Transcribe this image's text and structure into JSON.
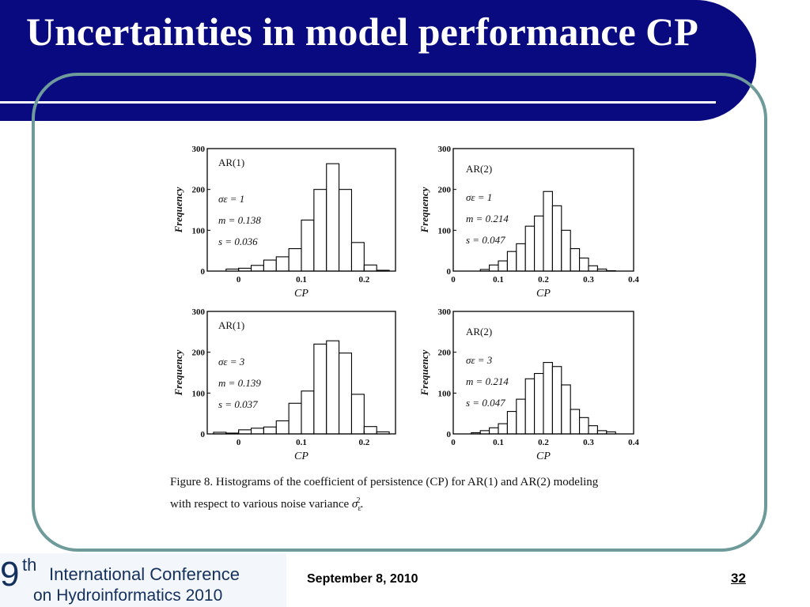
{
  "slide": {
    "title": "Uncertainties in model performance CP",
    "date": "September 8, 2010",
    "page_number": "32",
    "logo": {
      "line1_number": "9",
      "line1_suffix": "th",
      "line1_text": "International Conference",
      "line2_text": "on Hydroinformatics 2010"
    },
    "colors": {
      "title_bar": "#0a0a80",
      "frame": "#6e9a9a",
      "logo_text": "#14305c"
    }
  },
  "figure": {
    "caption_line1": "Figure 8. Histograms of the coefficient of persistence (CP) for AR(1) and AR(2) modeling",
    "caption_line2_prefix": "with respect to various noise variance ",
    "caption_line2_symbol": "σ",
    "caption_line2_suffix": "."
  },
  "chart_data": [
    {
      "type": "bar",
      "model": "AR(1)",
      "stats": [
        "σε = 1",
        "m = 0.138",
        "s = 0.036"
      ],
      "xlabel": "CP",
      "ylabel": "Frequency",
      "xlim": [
        -0.05,
        0.25
      ],
      "ylim": [
        0,
        300
      ],
      "xticks": [
        "0",
        "0.1",
        "0.2"
      ],
      "xtick_values": [
        0,
        0.1,
        0.2
      ],
      "yticks": [
        "0",
        "100",
        "200",
        "300"
      ],
      "ytick_values": [
        0,
        100,
        200,
        300
      ],
      "bin_start": -0.02,
      "bin_width": 0.02,
      "values": [
        5,
        7,
        14,
        27,
        35,
        55,
        125,
        200,
        263,
        200,
        70,
        15,
        2
      ]
    },
    {
      "type": "bar",
      "model": "AR(2)",
      "stats": [
        "σε = 1",
        "m = 0.214",
        "s = 0.047"
      ],
      "xlabel": "CP",
      "ylabel": "Frequency",
      "xlim": [
        0,
        0.4
      ],
      "ylim": [
        0,
        300
      ],
      "xticks": [
        "0",
        "0.1",
        "0.2",
        "0.3",
        "0.4"
      ],
      "xtick_values": [
        0,
        0.1,
        0.2,
        0.3,
        0.4
      ],
      "yticks": [
        "0",
        "100",
        "200",
        "300"
      ],
      "ytick_values": [
        0,
        100,
        200,
        300
      ],
      "bin_start": 0.06,
      "bin_width": 0.02,
      "values": [
        4,
        15,
        25,
        48,
        67,
        110,
        135,
        195,
        160,
        100,
        55,
        32,
        13,
        5,
        1
      ]
    },
    {
      "type": "bar",
      "model": "AR(1)",
      "stats": [
        "σε = 3",
        "m = 0.139",
        "s = 0.037"
      ],
      "xlabel": "CP",
      "ylabel": "Frequency",
      "xlim": [
        -0.05,
        0.25
      ],
      "ylim": [
        0,
        300
      ],
      "xticks": [
        "0",
        "0.1",
        "0.2"
      ],
      "xtick_values": [
        0,
        0.1,
        0.2
      ],
      "yticks": [
        "0",
        "100",
        "200",
        "300"
      ],
      "ytick_values": [
        0,
        100,
        200,
        300
      ],
      "bin_start": -0.04,
      "bin_width": 0.02,
      "values": [
        4,
        2,
        10,
        14,
        17,
        32,
        75,
        105,
        220,
        228,
        198,
        97,
        18,
        5
      ]
    },
    {
      "type": "bar",
      "model": "AR(2)",
      "stats": [
        "σε = 3",
        "m = 0.214",
        "s = 0.047"
      ],
      "xlabel": "CP",
      "ylabel": "Frequency",
      "xlim": [
        0,
        0.4
      ],
      "ylim": [
        0,
        300
      ],
      "xticks": [
        "0",
        "0.1",
        "0.2",
        "0.3",
        "0.4"
      ],
      "xtick_values": [
        0,
        0.1,
        0.2,
        0.3,
        0.4
      ],
      "yticks": [
        "0",
        "100",
        "200",
        "300"
      ],
      "ytick_values": [
        0,
        100,
        200,
        300
      ],
      "bin_start": 0.04,
      "bin_width": 0.02,
      "values": [
        3,
        8,
        15,
        25,
        55,
        85,
        135,
        148,
        175,
        165,
        120,
        60,
        40,
        20,
        8,
        5
      ]
    }
  ]
}
